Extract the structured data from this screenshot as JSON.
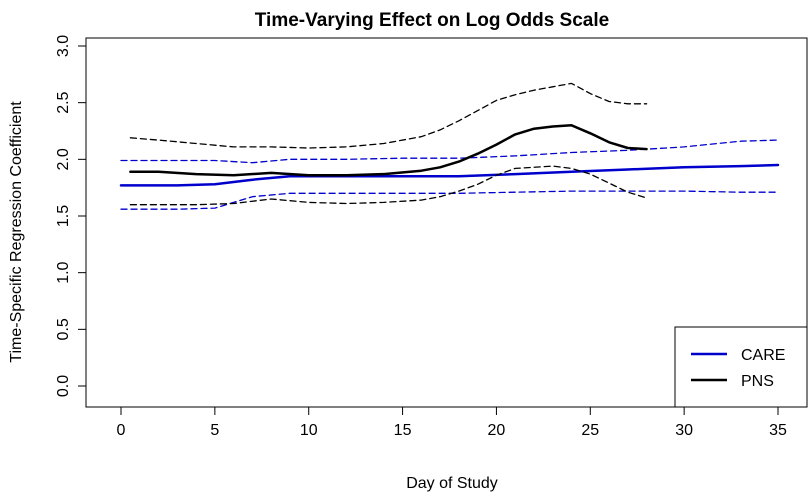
{
  "chart_data": {
    "type": "line",
    "title": "Time-Varying Effect on Log Odds Scale",
    "xlabel": "Day of Study",
    "ylabel": "Time-Specific Regression Coefficient",
    "xlim": [
      0,
      35
    ],
    "ylim": [
      0,
      3
    ],
    "xticks": [
      "0",
      "5",
      "10",
      "15",
      "20",
      "25",
      "30",
      "35"
    ],
    "yticks": [
      "0.0",
      "0.5",
      "1.0",
      "1.5",
      "2.0",
      "2.5",
      "3.0"
    ],
    "legend_position": "bottom-right",
    "series": [
      {
        "name": "CARE",
        "color": "#0000cc",
        "role": "estimate",
        "x": [
          0,
          3,
          5,
          7,
          9,
          12,
          15,
          18,
          21,
          24,
          27,
          30,
          33,
          35
        ],
        "y": [
          1.77,
          1.77,
          1.78,
          1.82,
          1.85,
          1.85,
          1.85,
          1.85,
          1.87,
          1.89,
          1.91,
          1.93,
          1.94,
          1.95
        ]
      },
      {
        "name": "CARE upper",
        "color": "#0000cc",
        "role": "upper-band",
        "x": [
          0,
          3,
          5,
          7,
          9,
          12,
          15,
          18,
          21,
          24,
          27,
          30,
          33,
          35
        ],
        "y": [
          1.99,
          1.99,
          1.99,
          1.97,
          2.0,
          2.0,
          2.01,
          2.01,
          2.03,
          2.06,
          2.08,
          2.11,
          2.16,
          2.17
        ]
      },
      {
        "name": "CARE lower",
        "color": "#0000cc",
        "role": "lower-band",
        "x": [
          0,
          3,
          5,
          7,
          9,
          12,
          15,
          18,
          21,
          24,
          27,
          30,
          33,
          35
        ],
        "y": [
          1.56,
          1.56,
          1.57,
          1.67,
          1.7,
          1.7,
          1.7,
          1.7,
          1.71,
          1.72,
          1.72,
          1.72,
          1.71,
          1.71
        ]
      },
      {
        "name": "PNS",
        "color": "#000000",
        "role": "estimate",
        "x": [
          0.5,
          2,
          4,
          6,
          8,
          10,
          12,
          14,
          16,
          17,
          18,
          19,
          20,
          21,
          22,
          23,
          24,
          25,
          26,
          27,
          28
        ],
        "y": [
          1.89,
          1.89,
          1.87,
          1.86,
          1.88,
          1.86,
          1.86,
          1.87,
          1.9,
          1.93,
          1.98,
          2.05,
          2.13,
          2.22,
          2.27,
          2.29,
          2.3,
          2.23,
          2.15,
          2.1,
          2.09
        ]
      },
      {
        "name": "PNS upper",
        "color": "#000000",
        "role": "upper-band",
        "x": [
          0.5,
          2,
          4,
          6,
          8,
          10,
          12,
          14,
          16,
          17,
          18,
          19,
          20,
          21,
          22,
          23,
          24,
          25,
          26,
          27,
          28
        ],
        "y": [
          2.19,
          2.17,
          2.14,
          2.11,
          2.11,
          2.1,
          2.11,
          2.14,
          2.2,
          2.26,
          2.34,
          2.43,
          2.52,
          2.57,
          2.61,
          2.64,
          2.67,
          2.58,
          2.51,
          2.49,
          2.49
        ]
      },
      {
        "name": "PNS lower",
        "color": "#000000",
        "role": "lower-band",
        "x": [
          0.5,
          2,
          4,
          6,
          8,
          10,
          12,
          14,
          16,
          17,
          18,
          19,
          20,
          21,
          22,
          23,
          24,
          25,
          26,
          27,
          28
        ],
        "y": [
          1.6,
          1.6,
          1.6,
          1.61,
          1.65,
          1.62,
          1.61,
          1.62,
          1.64,
          1.67,
          1.72,
          1.78,
          1.86,
          1.92,
          1.93,
          1.94,
          1.92,
          1.87,
          1.79,
          1.71,
          1.66
        ]
      }
    ],
    "legend": [
      {
        "label": "CARE",
        "color": "#0000cc"
      },
      {
        "label": "PNS",
        "color": "#000000"
      }
    ]
  }
}
